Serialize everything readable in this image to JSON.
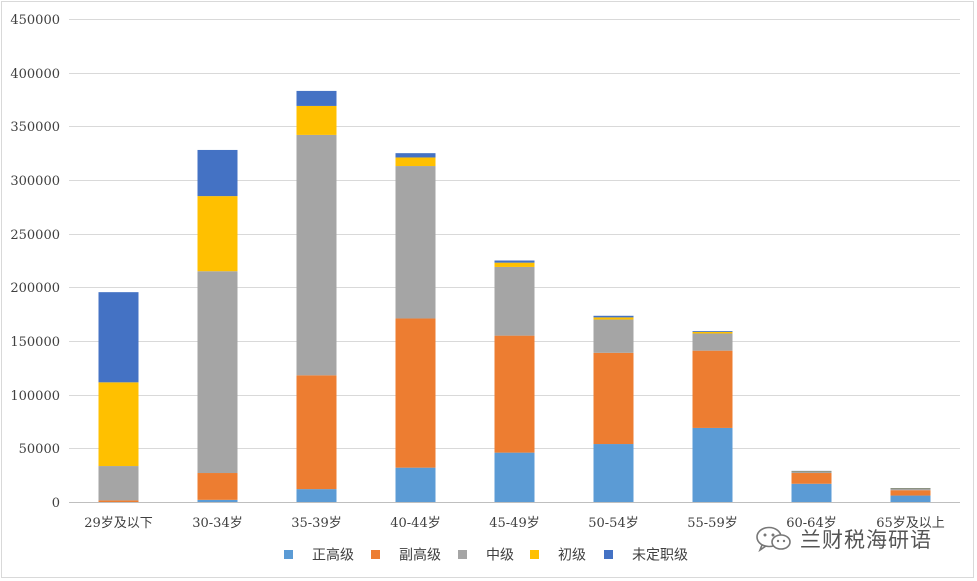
{
  "chart_data": {
    "type": "bar",
    "stacked": true,
    "categories": [
      "29岁及以下",
      "30-34岁",
      "35-39岁",
      "40-44岁",
      "45-49岁",
      "50-54岁",
      "55-59岁",
      "60-64岁",
      "65岁及以上"
    ],
    "series": [
      {
        "name": "正高级",
        "color": "#5b9bd5",
        "values": [
          0,
          2000,
          12000,
          32000,
          46000,
          54000,
          69000,
          17000,
          6000
        ]
      },
      {
        "name": "副高级",
        "color": "#ed7d31",
        "values": [
          1500,
          25000,
          106000,
          139000,
          109000,
          85000,
          72000,
          10000,
          5000
        ]
      },
      {
        "name": "中级",
        "color": "#a5a5a5",
        "values": [
          32000,
          188000,
          224000,
          142000,
          64000,
          31000,
          16000,
          1500,
          1500
        ]
      },
      {
        "name": "初级",
        "color": "#ffc000",
        "values": [
          78000,
          70000,
          27000,
          8000,
          4000,
          2000,
          1500,
          200,
          200
        ]
      },
      {
        "name": "未定职级",
        "color": "#4472c4",
        "values": [
          84000,
          43000,
          14000,
          4000,
          2000,
          1500,
          800,
          300,
          300
        ]
      }
    ],
    "ylim": [
      0,
      450000
    ],
    "yticks": [
      "0",
      "50000",
      "100000",
      "150000",
      "200000",
      "250000",
      "300000",
      "350000",
      "400000",
      "450000"
    ],
    "grid": true,
    "legend": "bottom"
  },
  "watermark": {
    "text": "兰财税海研语",
    "icon": "wechat-icon"
  }
}
